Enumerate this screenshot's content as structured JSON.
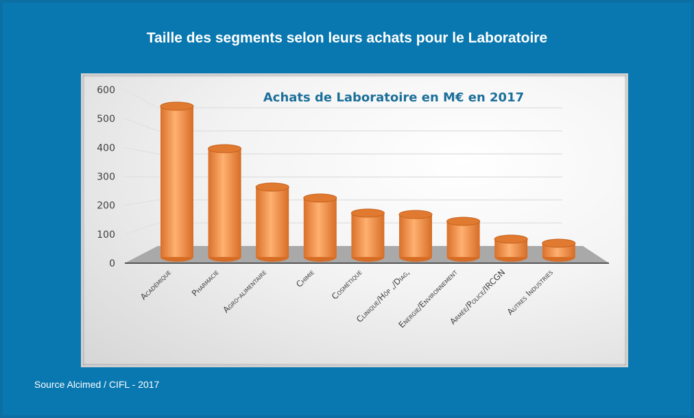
{
  "title": "Taille des segments selon leurs achats pour le Laboratoire",
  "source": "Source Alcimed / CIFL - 2017",
  "chart_data": {
    "type": "bar",
    "style": "3d-cylinder",
    "title": "Achats de Laboratoire en M€ en 2017",
    "xlabel": "",
    "ylabel": "",
    "ylim": [
      0,
      600
    ],
    "yticks": [
      0,
      100,
      200,
      300,
      400,
      500,
      600
    ],
    "grid": true,
    "categories": [
      "Académique",
      "Pharmacie",
      "Agro-alimentaire",
      "Chimie",
      "Cosmétique",
      "Clinique/Hôp ,/Diag,",
      "Energie/Environnement",
      "Armée/Police/IRCGN",
      "Autres Industries"
    ],
    "values": [
      550,
      395,
      255,
      215,
      160,
      155,
      130,
      65,
      50
    ],
    "colors": {
      "bar": "#f28a3c",
      "bar_light": "#ffb878",
      "bar_dark": "#c8621e",
      "background": "#0a78b0"
    }
  }
}
